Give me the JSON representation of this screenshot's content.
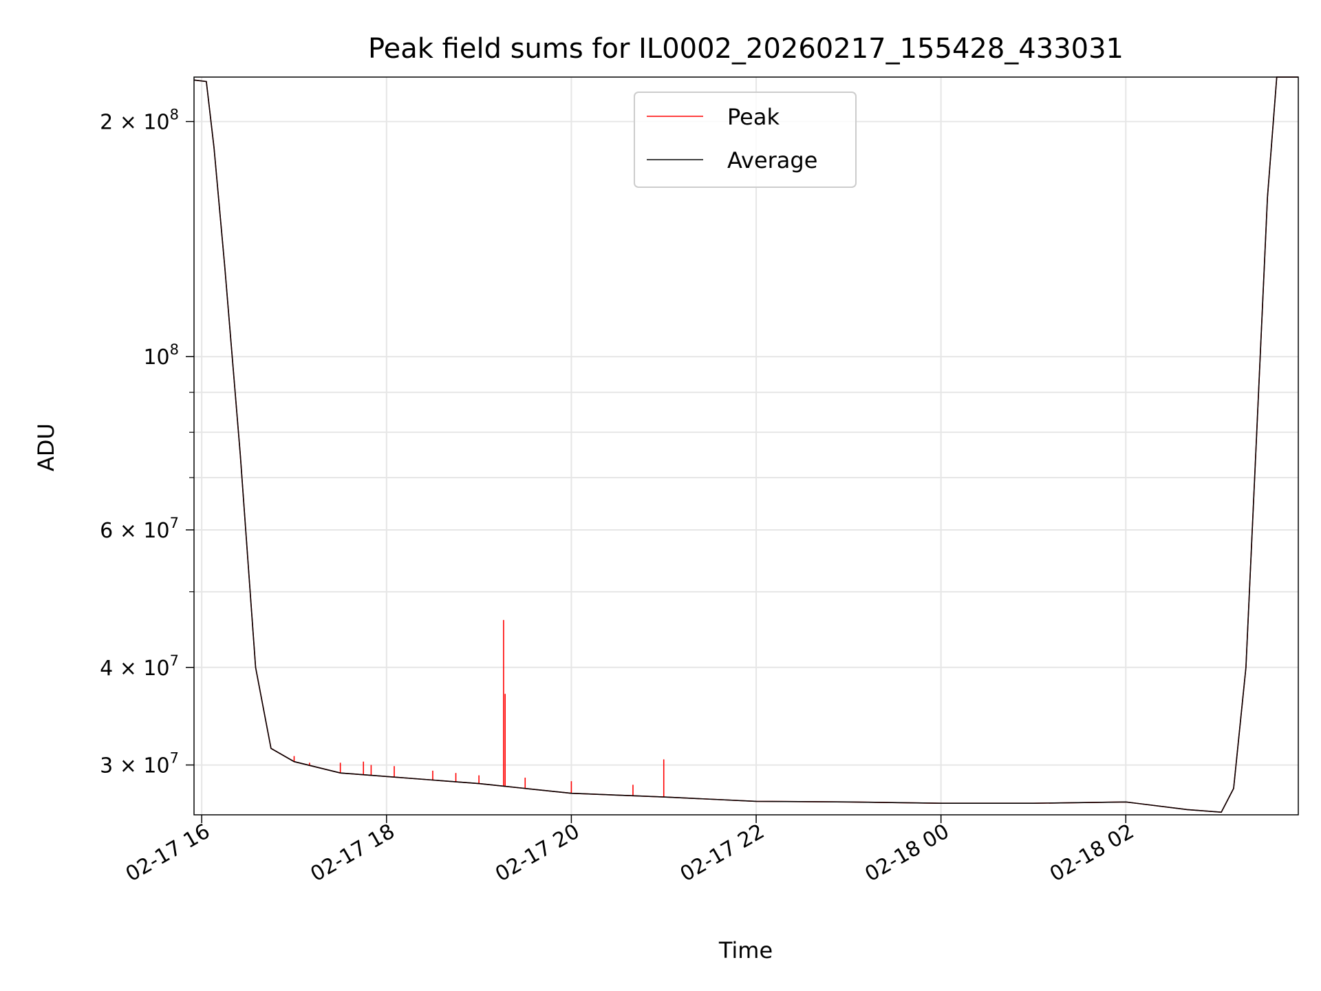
{
  "chart_data": {
    "type": "line",
    "title": "Peak field sums for IL0002_20260217_155428_433031",
    "xlabel": "Time",
    "ylabel": "ADU",
    "y_scale": "log",
    "xlim": [
      "2026-02-17 15:55",
      "2026-02-18 03:52"
    ],
    "ylim": [
      25900000,
      228000000
    ],
    "grid": true,
    "legend_position": "upper center",
    "x_ticks": [
      {
        "t": "2026-02-17 16:00",
        "label": "02-17 16"
      },
      {
        "t": "2026-02-17 18:00",
        "label": "02-17 18"
      },
      {
        "t": "2026-02-17 20:00",
        "label": "02-17 20"
      },
      {
        "t": "2026-02-17 22:00",
        "label": "02-17 22"
      },
      {
        "t": "2026-02-18 00:00",
        "label": "02-18 00"
      },
      {
        "t": "2026-02-18 02:00",
        "label": "02-18 02"
      }
    ],
    "y_ticks": [
      {
        "v": 200000000,
        "base": "2 × 10",
        "exp": "8"
      },
      {
        "v": 100000000,
        "base": "10",
        "exp": "8"
      },
      {
        "v": 60000000,
        "base": "6 × 10",
        "exp": "7"
      },
      {
        "v": 40000000,
        "base": "4 × 10",
        "exp": "7"
      },
      {
        "v": 30000000,
        "base": "3 × 10",
        "exp": "7"
      }
    ],
    "y_minor_ticks": [
      90000000,
      80000000,
      70000000,
      50000000
    ],
    "series": [
      {
        "name": "Peak",
        "color": "#ff0000",
        "baseline_values": [
          [
            "2026-02-17 15:55",
            226000000
          ],
          [
            "2026-02-17 16:03",
            225000000
          ],
          [
            "2026-02-17 16:08",
            185000000
          ],
          [
            "2026-02-17 16:15",
            130000000
          ],
          [
            "2026-02-17 16:25",
            75000000
          ],
          [
            "2026-02-17 16:35",
            40000000
          ],
          [
            "2026-02-17 16:45",
            31500000
          ],
          [
            "2026-02-17 17:00",
            30300000
          ],
          [
            "2026-02-17 17:30",
            29300000
          ],
          [
            "2026-02-17 18:00",
            29000000
          ],
          [
            "2026-02-17 19:00",
            28400000
          ],
          [
            "2026-02-17 20:00",
            27600000
          ],
          [
            "2026-02-17 21:00",
            27300000
          ],
          [
            "2026-02-17 22:00",
            26950000
          ],
          [
            "2026-02-17 23:00",
            26900000
          ],
          [
            "2026-02-18 00:00",
            26800000
          ],
          [
            "2026-02-18 01:00",
            26800000
          ],
          [
            "2026-02-18 02:00",
            26900000
          ],
          [
            "2026-02-18 02:40",
            26300000
          ],
          [
            "2026-02-18 03:02",
            26100000
          ],
          [
            "2026-02-18 03:10",
            28000000
          ],
          [
            "2026-02-18 03:18",
            40000000
          ],
          [
            "2026-02-18 03:25",
            80000000
          ],
          [
            "2026-02-18 03:32",
            160000000
          ],
          [
            "2026-02-18 03:38",
            228000000
          ],
          [
            "2026-02-18 03:52",
            228000000
          ]
        ],
        "spikes": [
          [
            "2026-02-17 19:16",
            46000000
          ],
          [
            "2026-02-17 19:17",
            37000000
          ],
          [
            "2026-02-17 16:40",
            35500000
          ],
          [
            "2026-02-17 21:00",
            30500000
          ],
          [
            "2026-02-17 17:00",
            30800000
          ],
          [
            "2026-02-17 17:10",
            30200000
          ],
          [
            "2026-02-17 17:30",
            30200000
          ],
          [
            "2026-02-17 17:45",
            30300000
          ],
          [
            "2026-02-17 17:50",
            30000000
          ],
          [
            "2026-02-17 18:05",
            29900000
          ],
          [
            "2026-02-17 18:30",
            29500000
          ],
          [
            "2026-02-17 18:45",
            29300000
          ],
          [
            "2026-02-17 19:00",
            29100000
          ],
          [
            "2026-02-17 19:30",
            28900000
          ],
          [
            "2026-02-17 20:00",
            28600000
          ],
          [
            "2026-02-17 20:40",
            28300000
          ]
        ]
      },
      {
        "name": "Average",
        "color": "#000000",
        "values": [
          [
            "2026-02-17 15:55",
            226000000
          ],
          [
            "2026-02-17 16:03",
            225000000
          ],
          [
            "2026-02-17 16:08",
            185000000
          ],
          [
            "2026-02-17 16:15",
            130000000
          ],
          [
            "2026-02-17 16:25",
            75000000
          ],
          [
            "2026-02-17 16:35",
            40000000
          ],
          [
            "2026-02-17 16:45",
            31500000
          ],
          [
            "2026-02-17 17:00",
            30300000
          ],
          [
            "2026-02-17 17:30",
            29300000
          ],
          [
            "2026-02-17 18:00",
            29000000
          ],
          [
            "2026-02-17 19:00",
            28400000
          ],
          [
            "2026-02-17 20:00",
            27600000
          ],
          [
            "2026-02-17 21:00",
            27300000
          ],
          [
            "2026-02-17 22:00",
            26950000
          ],
          [
            "2026-02-17 23:00",
            26900000
          ],
          [
            "2026-02-18 00:00",
            26800000
          ],
          [
            "2026-02-18 01:00",
            26800000
          ],
          [
            "2026-02-18 02:00",
            26900000
          ],
          [
            "2026-02-18 02:40",
            26300000
          ],
          [
            "2026-02-18 03:02",
            26100000
          ],
          [
            "2026-02-18 03:10",
            28000000
          ],
          [
            "2026-02-18 03:18",
            40000000
          ],
          [
            "2026-02-18 03:25",
            80000000
          ],
          [
            "2026-02-18 03:32",
            160000000
          ],
          [
            "2026-02-18 03:38",
            228000000
          ],
          [
            "2026-02-18 03:52",
            228000000
          ]
        ]
      }
    ]
  }
}
